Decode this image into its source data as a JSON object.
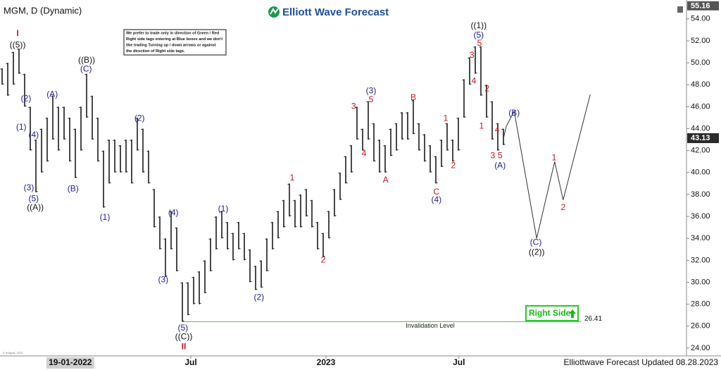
{
  "chart_data": {
    "type": "hilo",
    "title": "MGM, D (Dynamic)",
    "brand": "Elliott Wave Forecast",
    "note": [
      "We prefer to trade only in direction of Green / Red",
      "Right side tags entering at Blue boxes and we don't",
      "like trading Turning up / down arrows or against",
      "the direction of Right side tags."
    ],
    "series": [
      {
        "color": "#1a1a1a",
        "x": [
          0,
          1,
          2,
          3,
          4,
          5,
          6,
          7,
          8,
          9,
          10,
          11,
          12,
          13,
          14,
          15,
          16,
          17,
          18,
          19,
          20,
          21,
          22,
          23,
          24,
          25,
          26,
          27,
          28,
          29,
          30,
          31,
          32,
          33,
          34,
          35,
          36,
          37,
          38,
          39,
          40,
          41,
          42,
          43,
          44,
          45,
          46,
          47,
          48,
          49,
          50,
          51,
          52,
          53,
          54,
          55,
          56,
          57,
          58,
          59,
          60,
          61,
          62,
          63,
          64,
          65,
          66,
          67,
          68,
          69,
          70,
          71,
          72,
          73,
          74,
          75,
          76,
          77,
          78,
          79,
          80,
          81,
          82,
          83,
          84,
          85,
          86,
          87,
          88,
          89
        ],
        "high": [
          49.5,
          50,
          51,
          51.3,
          49,
          46,
          43,
          44,
          45,
          47,
          46,
          46,
          45,
          44,
          46,
          49,
          47,
          45,
          42,
          43,
          43,
          42.5,
          43,
          43,
          45,
          44,
          42,
          38.5,
          36,
          34,
          36.5,
          35,
          30,
          30,
          30.5,
          31,
          32,
          34,
          36,
          36.5,
          35.5,
          34.5,
          35.5,
          34.5,
          33,
          31.5,
          32,
          34,
          35.5,
          36.5,
          37.5,
          39,
          37.5,
          38,
          38.5,
          37.5,
          35.5,
          34.5,
          36.5,
          38.5,
          40,
          41.5,
          42.5,
          46,
          44,
          46.5,
          44.5,
          43,
          42.5,
          44,
          44.5,
          45.5,
          45.5,
          46.6,
          44.5,
          43.5,
          42.5,
          41.5,
          43,
          44.5,
          43,
          45,
          48.5,
          50.5,
          51.5,
          51.5,
          48,
          46.5,
          44.5,
          44
        ],
        "low": [
          48,
          47,
          48,
          49,
          46,
          42,
          38.2,
          40,
          41,
          43,
          42,
          43,
          41,
          39.5,
          42,
          45,
          43,
          41,
          36.8,
          39,
          40,
          40,
          40,
          39,
          42,
          40,
          39,
          35,
          33,
          30.5,
          33,
          31,
          26.41,
          27,
          28,
          28,
          29,
          31,
          33,
          34,
          33,
          32,
          33,
          32,
          30,
          29.3,
          29.5,
          31,
          33,
          34,
          35,
          36,
          35,
          35,
          36,
          35,
          33,
          32.3,
          34,
          36,
          37.5,
          39,
          40,
          43,
          42,
          43,
          41,
          40,
          40,
          41.5,
          42,
          43,
          43,
          43.5,
          42,
          41,
          40,
          39,
          40.5,
          42,
          41,
          42,
          45,
          48,
          49,
          47,
          45,
          43,
          42,
          42.5
        ]
      }
    ],
    "projection": {
      "color": "#333333",
      "x": [
        89,
        89.5,
        90.9,
        94.9,
        98.1,
        99.6,
        104.4
      ],
      "values": [
        43.1,
        44.2,
        45.6,
        34.0,
        41.0,
        37.5,
        47.1
      ]
    },
    "last_price": 43.13,
    "top_price": 55.16,
    "invalidation": {
      "label": "Invalidation Level",
      "value": 26.41,
      "color": "#3cc83c"
    },
    "right_side_tag": "Right Side",
    "wave_labels": [
      {
        "text": "I",
        "x": 2.75,
        "y": 52.65,
        "color": "#c8141a"
      },
      {
        "text": "((5))",
        "x": 2.75,
        "y": 51.6,
        "color": "#111111"
      },
      {
        "text": "(2)",
        "x": 4.25,
        "y": 46.7,
        "color": "#1c1c9c"
      },
      {
        "text": "(1)",
        "x": 3.4,
        "y": 44.1,
        "color": "#1c1c9c"
      },
      {
        "text": "(4)",
        "x": 5.6,
        "y": 43.4,
        "color": "#1c1c9c"
      },
      {
        "text": "(3)",
        "x": 4.75,
        "y": 38.6,
        "color": "#1c1c9c"
      },
      {
        "text": "(5)",
        "x": 5.6,
        "y": 37.6,
        "color": "#1c1c9c"
      },
      {
        "text": "((A))",
        "x": 5.9,
        "y": 36.8,
        "color": "#111111"
      },
      {
        "text": "(A)",
        "x": 8.9,
        "y": 47.1,
        "color": "#1c1c9c"
      },
      {
        "text": "((B))",
        "x": 15,
        "y": 50.2,
        "color": "#111111"
      },
      {
        "text": "(C)",
        "x": 14.9,
        "y": 49.4,
        "color": "#1c1c9c"
      },
      {
        "text": "(B)",
        "x": 12.6,
        "y": 38.5,
        "color": "#1c1c9c"
      },
      {
        "text": "(1)",
        "x": 18.25,
        "y": 35.9,
        "color": "#1c1c9c"
      },
      {
        "text": "(2)",
        "x": 24.4,
        "y": 44.9,
        "color": "#1c1c9c"
      },
      {
        "text": "(4)",
        "x": 30.4,
        "y": 36.3,
        "color": "#1c1c9c"
      },
      {
        "text": "(3)",
        "x": 28.6,
        "y": 30.2,
        "color": "#1c1c9c"
      },
      {
        "text": "(5)",
        "x": 32.1,
        "y": 25.8,
        "color": "#1c1c9c"
      },
      {
        "text": "((C))",
        "x": 32.25,
        "y": 25.0,
        "color": "#111111"
      },
      {
        "text": "II",
        "x": 32.25,
        "y": 24.1,
        "color": "#c8141a"
      },
      {
        "text": "(1)",
        "x": 39.25,
        "y": 36.65,
        "color": "#1c1c9c"
      },
      {
        "text": "(2)",
        "x": 45.6,
        "y": 28.6,
        "color": "#1c1c9c"
      },
      {
        "text": "1",
        "x": 51.5,
        "y": 39.5,
        "color": "#c8141a"
      },
      {
        "text": "2",
        "x": 57,
        "y": 32.0,
        "color": "#c8141a"
      },
      {
        "text": "3",
        "x": 62.4,
        "y": 46.0,
        "color": "#c8141a"
      },
      {
        "text": "4",
        "x": 64.25,
        "y": 41.7,
        "color": "#c8141a"
      },
      {
        "text": "(3)",
        "x": 65.5,
        "y": 47.4,
        "color": "#1c1c9c"
      },
      {
        "text": "5",
        "x": 65.5,
        "y": 46.6,
        "color": "#c8141a"
      },
      {
        "text": "A",
        "x": 68.1,
        "y": 39.3,
        "color": "#c8141a"
      },
      {
        "text": "B",
        "x": 73,
        "y": 46.8,
        "color": "#c8141a"
      },
      {
        "text": "C",
        "x": 77.1,
        "y": 38.2,
        "color": "#c8141a"
      },
      {
        "text": "(4)",
        "x": 77.1,
        "y": 37.5,
        "color": "#1c1c9c"
      },
      {
        "text": "1",
        "x": 78.75,
        "y": 44.9,
        "color": "#c8141a"
      },
      {
        "text": "2",
        "x": 80.1,
        "y": 40.6,
        "color": "#c8141a"
      },
      {
        "text": "3",
        "x": 83.4,
        "y": 50.65,
        "color": "#c8141a"
      },
      {
        "text": "((1))",
        "x": 84.6,
        "y": 53.35,
        "color": "#111111"
      },
      {
        "text": "(5)",
        "x": 84.6,
        "y": 52.5,
        "color": "#1c1c9c"
      },
      {
        "text": "5",
        "x": 84.75,
        "y": 51.75,
        "color": "#c8141a"
      },
      {
        "text": "4",
        "x": 83.75,
        "y": 48.3,
        "color": "#c8141a"
      },
      {
        "text": "2",
        "x": 86.1,
        "y": 47.6,
        "color": "#c8141a"
      },
      {
        "text": "1",
        "x": 85.1,
        "y": 44.2,
        "color": "#c8141a"
      },
      {
        "text": "4",
        "x": 87.9,
        "y": 43.85,
        "color": "#c8141a"
      },
      {
        "text": "3",
        "x": 87.1,
        "y": 41.5,
        "color": "#c8141a"
      },
      {
        "text": "5",
        "x": 88.4,
        "y": 41.5,
        "color": "#c8141a"
      },
      {
        "text": "(A)",
        "x": 88.4,
        "y": 40.6,
        "color": "#1c1c9c"
      },
      {
        "text": "(B)",
        "x": 90.9,
        "y": 45.4,
        "color": "#1c1c9c"
      },
      {
        "text": "(C)",
        "x": 94.75,
        "y": 33.6,
        "color": "#1c1c9c"
      },
      {
        "text": "((2))",
        "x": 94.9,
        "y": 32.7,
        "color": "#111111"
      },
      {
        "text": "1",
        "x": 98,
        "y": 41.3,
        "color": "#c8141a"
      },
      {
        "text": "2",
        "x": 99.6,
        "y": 36.8,
        "color": "#c8141a"
      }
    ],
    "xlim": [
      0,
      121.5
    ],
    "xticks": [
      {
        "value": 33.5,
        "label": "Jul"
      },
      {
        "value": 57.5,
        "label": "2023"
      },
      {
        "value": 81.1,
        "label": "Jul"
      }
    ],
    "x_cursor": {
      "value": 12.1,
      "label": "19-01-2022"
    },
    "ylim": [
      23.29,
      55.4
    ],
    "yticks": [
      {
        "value": 24,
        "label": "24.00"
      },
      {
        "value": 26,
        "label": "26.00"
      },
      {
        "value": 28,
        "label": "28.00"
      },
      {
        "value": 30,
        "label": "30.00"
      },
      {
        "value": 32,
        "label": "32.00"
      },
      {
        "value": 34,
        "label": "34.00"
      },
      {
        "value": 36,
        "label": "36.00"
      },
      {
        "value": 38,
        "label": "38.00"
      },
      {
        "value": 40,
        "label": "40.00"
      },
      {
        "value": 42,
        "label": "42.00"
      },
      {
        "value": 44,
        "label": "44.00"
      },
      {
        "value": 46,
        "label": "46.00"
      },
      {
        "value": 48,
        "label": "48.00"
      },
      {
        "value": 50,
        "label": "50.00"
      },
      {
        "value": 52,
        "label": "52.00"
      },
      {
        "value": 54,
        "label": "54.00"
      }
    ],
    "footer": "Elliottwave Forecast Updated 08.28.2023",
    "copyright": "© eSignal, 2023"
  }
}
